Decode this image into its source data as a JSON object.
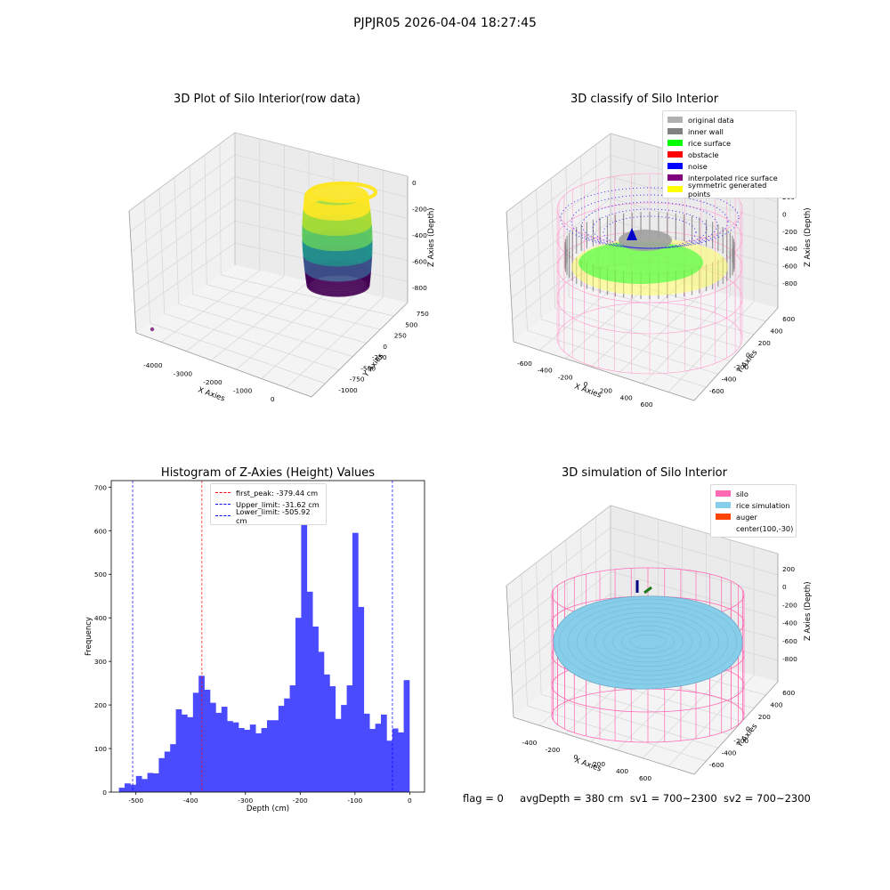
{
  "figure": {
    "suptitle": "PJPJR05 2026-04-04 18:27:45",
    "footer": {
      "flag": "flag = 0",
      "avg_depth": "avgDepth = 380 cm",
      "sv1": "sv1 = 700~2300",
      "sv2": "sv2 = 700~2300"
    }
  },
  "chart_data": [
    {
      "type": "scatter",
      "title": "3D Plot of Silo Interior(row data)",
      "xlabel": "X Axies",
      "ylabel": "Y Axies",
      "zlabel": "Z Axies (Depth)",
      "x_ticks": [
        "-4000",
        "-3000",
        "-2000",
        "-1000",
        "0"
      ],
      "y_ticks": [
        "-1000",
        "-750",
        "-500",
        "-250",
        "0",
        "250",
        "500",
        "750"
      ],
      "z_ticks": [
        "0",
        "-200",
        "-400",
        "-600",
        "-800"
      ],
      "colormap": "viridis",
      "colors": {
        "outlier": "#8e3a8c"
      }
    },
    {
      "type": "scatter",
      "title": "3D classify of Silo Interior",
      "xlabel": "X Axies",
      "ylabel": "Y Axies",
      "zlabel": "Z Axies (Depth)",
      "x_ticks": [
        "-600",
        "-400",
        "-200",
        "0",
        "200",
        "400",
        "600"
      ],
      "y_ticks": [
        "-600",
        "-400",
        "-200",
        "0",
        "200",
        "400",
        "600"
      ],
      "z_ticks": [
        "200",
        "0",
        "-200",
        "-400",
        "-600",
        "-800"
      ],
      "z_partial_tick": "200",
      "legend": [
        {
          "label": "original data",
          "color": "#b0b0b0"
        },
        {
          "label": "inner wall",
          "color": "#808080"
        },
        {
          "label": "rice surface",
          "color": "#00ff00"
        },
        {
          "label": "obstacle",
          "color": "#ff0000"
        },
        {
          "label": "noise",
          "color": "#0000ff"
        },
        {
          "label": "interpolated rice surface",
          "color": "#800080"
        },
        {
          "label": "symmetric generated points",
          "color": "#ffff00"
        }
      ]
    },
    {
      "type": "bar",
      "title": "Histogram of Z-Axies (Height) Values",
      "xlabel": "Depth (cm)",
      "ylabel": "Frequency",
      "xlim": [
        -545,
        27
      ],
      "ylim": [
        0,
        715
      ],
      "x_ticks": [
        -500,
        -400,
        -300,
        -200,
        -100,
        0
      ],
      "y_ticks": [
        0,
        100,
        200,
        300,
        400,
        500,
        600,
        700
      ],
      "bin_width": 10.4,
      "bin_start": -531,
      "values": [
        10,
        20,
        17,
        37,
        30,
        44,
        43,
        78,
        93,
        110,
        190,
        178,
        172,
        228,
        267,
        235,
        205,
        182,
        196,
        163,
        160,
        147,
        143,
        155,
        135,
        147,
        165,
        165,
        198,
        215,
        245,
        400,
        662,
        460,
        380,
        322,
        270,
        243,
        168,
        200,
        245,
        595,
        425,
        180,
        145,
        157,
        178,
        118,
        146,
        137,
        257
      ],
      "bar_color": "#4a4aff",
      "lines": [
        {
          "label": "first_peak: -379.44 cm",
          "x": -379.44,
          "color": "#ff0000"
        },
        {
          "label": "Upper_limit: -31.62 cm",
          "x": -31.62,
          "color": "#0000ff"
        },
        {
          "label": "Lower_limit: -505.92 cm",
          "x": -505.92,
          "color": "#0000ff"
        }
      ]
    },
    {
      "type": "area",
      "title": "3D simulation of Silo Interior",
      "xlabel": "X Axies",
      "ylabel": "Y Axies",
      "zlabel": "Z Axies (Depth)",
      "x_ticks": [
        "-400",
        "-200",
        "0",
        "200",
        "400",
        "600"
      ],
      "y_ticks": [
        "-600",
        "-400",
        "-200",
        "0",
        "200",
        "400",
        "600"
      ],
      "z_ticks": [
        "200",
        "0",
        "-200",
        "-400",
        "-600",
        "-800"
      ],
      "legend": [
        {
          "label": "silo",
          "color": "#ff69b4"
        },
        {
          "label": "rice simulation",
          "color": "#87ceeb"
        },
        {
          "label": "auger",
          "color": "#ff4500"
        },
        {
          "label": "center(100,-30)",
          "color": ""
        }
      ]
    }
  ]
}
